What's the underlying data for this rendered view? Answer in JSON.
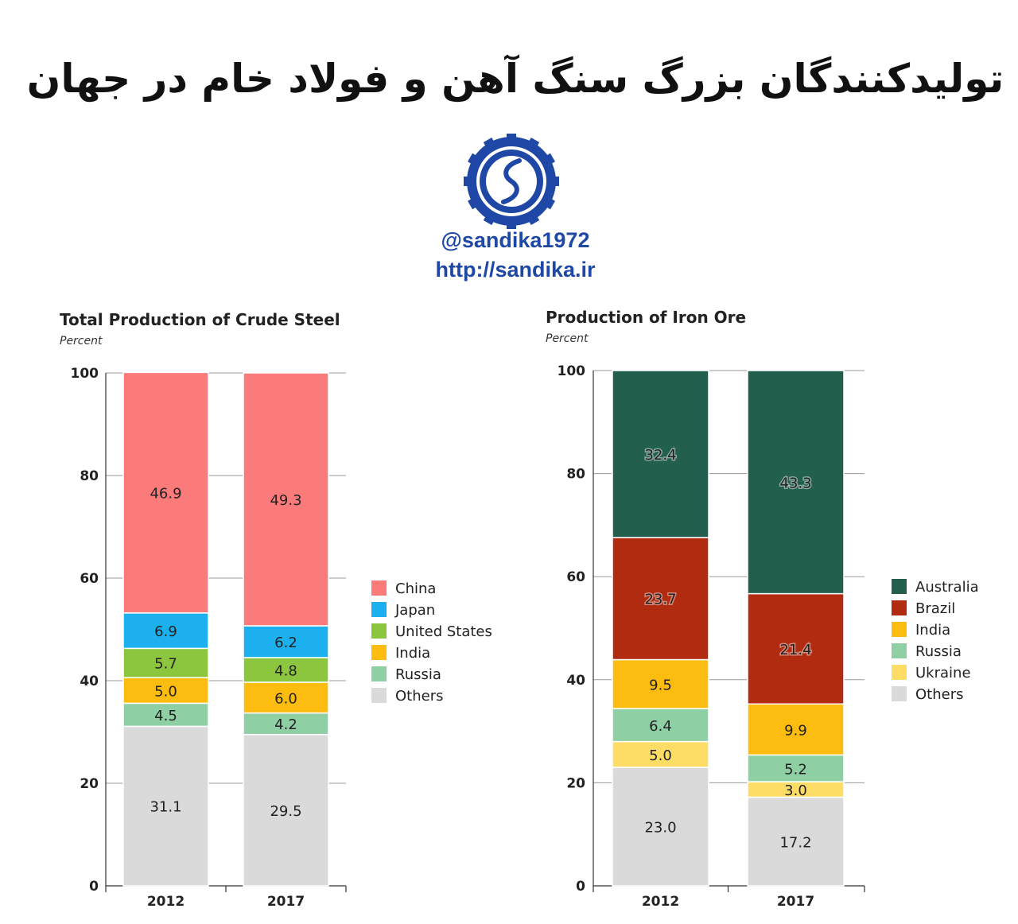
{
  "header": {
    "title": "تولیدکنندگان بزرگ سنگ آهن و فولاد خام در جهان",
    "handle": "@sandika1972",
    "url": "http://sandika.ir"
  },
  "colors": {
    "China": "#fb7b7b",
    "Japan": "#1cb0ee",
    "United States": "#8cc63f",
    "India": "#fdbd10",
    "Russia": "#8ecfa4",
    "Others": "#dadada",
    "Australia": "#225f4e",
    "Brazil": "#b02b10",
    "Ukraine": "#fddd66",
    "brand_blue": "#1f47a6"
  },
  "chart_data": [
    {
      "type": "bar",
      "stacked": true,
      "title": "Total Production of Crude Steel",
      "subtitle": "Percent",
      "categories": [
        "2012",
        "2017"
      ],
      "ylim": [
        0,
        100
      ],
      "yticks": [
        0,
        20,
        40,
        60,
        80,
        100
      ],
      "grid": true,
      "legend_position": "right",
      "legend": [
        "China",
        "Japan",
        "United States",
        "India",
        "Russia",
        "Others"
      ],
      "series": [
        {
          "name": "Others",
          "values": [
            31.1,
            29.5
          ]
        },
        {
          "name": "Russia",
          "values": [
            4.5,
            4.2
          ]
        },
        {
          "name": "India",
          "values": [
            5.0,
            6.0
          ]
        },
        {
          "name": "United States",
          "values": [
            5.7,
            4.8
          ]
        },
        {
          "name": "Japan",
          "values": [
            6.9,
            6.2
          ]
        },
        {
          "name": "China",
          "values": [
            46.9,
            49.3
          ]
        }
      ]
    },
    {
      "type": "bar",
      "stacked": true,
      "title": "Production of Iron Ore",
      "subtitle": "Percent",
      "categories": [
        "2012",
        "2017"
      ],
      "ylim": [
        0,
        100
      ],
      "yticks": [
        0,
        20,
        40,
        60,
        80,
        100
      ],
      "grid": true,
      "legend_position": "right",
      "legend": [
        "Australia",
        "Brazil",
        "India",
        "Russia",
        "Ukraine",
        "Others"
      ],
      "series": [
        {
          "name": "Others",
          "values": [
            23.0,
            17.2
          ]
        },
        {
          "name": "Ukraine",
          "values": [
            5.0,
            3.0
          ]
        },
        {
          "name": "Russia",
          "values": [
            6.4,
            5.2
          ]
        },
        {
          "name": "India",
          "values": [
            9.5,
            9.9
          ]
        },
        {
          "name": "Brazil",
          "values": [
            23.7,
            21.4
          ]
        },
        {
          "name": "Australia",
          "values": [
            32.4,
            43.3
          ]
        }
      ]
    }
  ]
}
